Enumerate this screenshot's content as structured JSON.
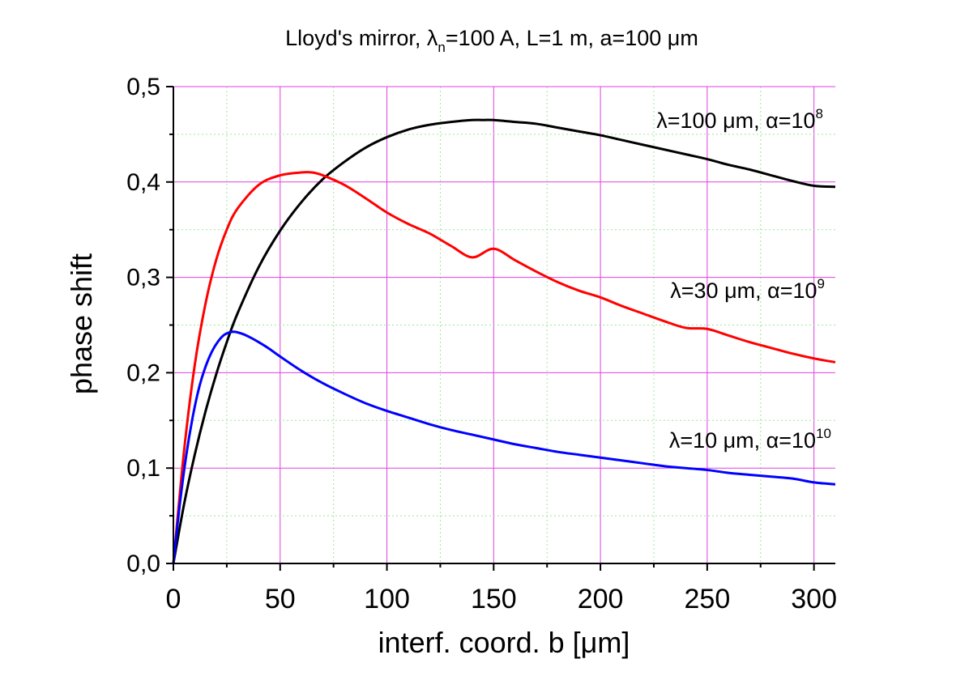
{
  "chart_data": {
    "type": "line",
    "title": {
      "prefix": "Lloyd's mirror, ",
      "lambda_symbol": "λ",
      "lambda_subscript": "n",
      "suffix": "=100 A, L=1 m, a=100 μm"
    },
    "xlabel": "interf. coord. b [μm]",
    "ylabel": "phase shift",
    "xlim": [
      0,
      310
    ],
    "ylim": [
      0,
      0.5
    ],
    "x_ticks": [
      0,
      50,
      100,
      150,
      200,
      250,
      300
    ],
    "x_tick_labels": [
      "0",
      "50",
      "100",
      "150",
      "200",
      "250",
      "300"
    ],
    "y_ticks": [
      0,
      0.1,
      0.2,
      0.3,
      0.4,
      0.5
    ],
    "y_tick_labels": [
      "0,0",
      "0,1",
      "0,2",
      "0,3",
      "0,4",
      "0,5"
    ],
    "grid": true,
    "grid_color": "#e040e0",
    "series": [
      {
        "name": "λ=100 μm, α=10^8",
        "label_main": "λ=100 μm, α=10",
        "label_exp": "8",
        "color": "#000000",
        "peak_x": 145,
        "peak_y": 0.465,
        "x": [
          0,
          5,
          10,
          15,
          20,
          25,
          30,
          40,
          50,
          60,
          70,
          80,
          90,
          100,
          110,
          120,
          130,
          140,
          145,
          150,
          160,
          170,
          180,
          190,
          200,
          210,
          220,
          230,
          240,
          250,
          260,
          270,
          280,
          290,
          300,
          310
        ],
        "y": [
          0.0,
          0.062,
          0.114,
          0.159,
          0.198,
          0.232,
          0.262,
          0.311,
          0.349,
          0.379,
          0.403,
          0.421,
          0.436,
          0.447,
          0.455,
          0.46,
          0.463,
          0.465,
          0.465,
          0.465,
          0.463,
          0.461,
          0.457,
          0.453,
          0.449,
          0.444,
          0.439,
          0.434,
          0.429,
          0.424,
          0.418,
          0.413,
          0.407,
          0.401,
          0.396,
          0.395
        ]
      },
      {
        "name": "λ=30 μm, α=10^9",
        "label_main": "λ=30 μm, α=10",
        "label_exp": "9",
        "color": "#ff0000",
        "peak_x": 65,
        "peak_y": 0.41,
        "x": [
          0,
          5,
          10,
          15,
          20,
          25,
          30,
          40,
          50,
          60,
          65,
          70,
          80,
          90,
          100,
          110,
          120,
          130,
          140,
          150,
          160,
          170,
          180,
          190,
          200,
          210,
          220,
          230,
          240,
          250,
          260,
          270,
          280,
          290,
          300,
          310
        ],
        "y": [
          0.0,
          0.118,
          0.208,
          0.272,
          0.318,
          0.35,
          0.372,
          0.397,
          0.407,
          0.41,
          0.41,
          0.407,
          0.397,
          0.383,
          0.368,
          0.356,
          0.346,
          0.333,
          0.321,
          0.33,
          0.318,
          0.306,
          0.295,
          0.286,
          0.279,
          0.27,
          0.262,
          0.254,
          0.247,
          0.246,
          0.239,
          0.232,
          0.226,
          0.22,
          0.215,
          0.211
        ]
      },
      {
        "name": "λ=10 μm, α=10^10",
        "label_main": "λ=10 μm, α=10",
        "label_exp": "10",
        "color": "#0000ff",
        "peak_x": 28,
        "peak_y": 0.243,
        "x": [
          0,
          3,
          6,
          9,
          12,
          15,
          18,
          21,
          24,
          28,
          32,
          36,
          40,
          45,
          50,
          60,
          70,
          80,
          90,
          100,
          110,
          120,
          130,
          140,
          150,
          160,
          170,
          180,
          190,
          200,
          210,
          220,
          230,
          240,
          250,
          260,
          270,
          280,
          290,
          300,
          310
        ],
        "y": [
          0.0,
          0.062,
          0.113,
          0.153,
          0.184,
          0.206,
          0.222,
          0.233,
          0.24,
          0.243,
          0.241,
          0.237,
          0.232,
          0.225,
          0.217,
          0.202,
          0.189,
          0.178,
          0.168,
          0.16,
          0.153,
          0.146,
          0.14,
          0.135,
          0.13,
          0.125,
          0.121,
          0.117,
          0.114,
          0.111,
          0.108,
          0.105,
          0.102,
          0.1,
          0.098,
          0.095,
          0.093,
          0.091,
          0.089,
          0.085,
          0.083
        ]
      }
    ]
  }
}
